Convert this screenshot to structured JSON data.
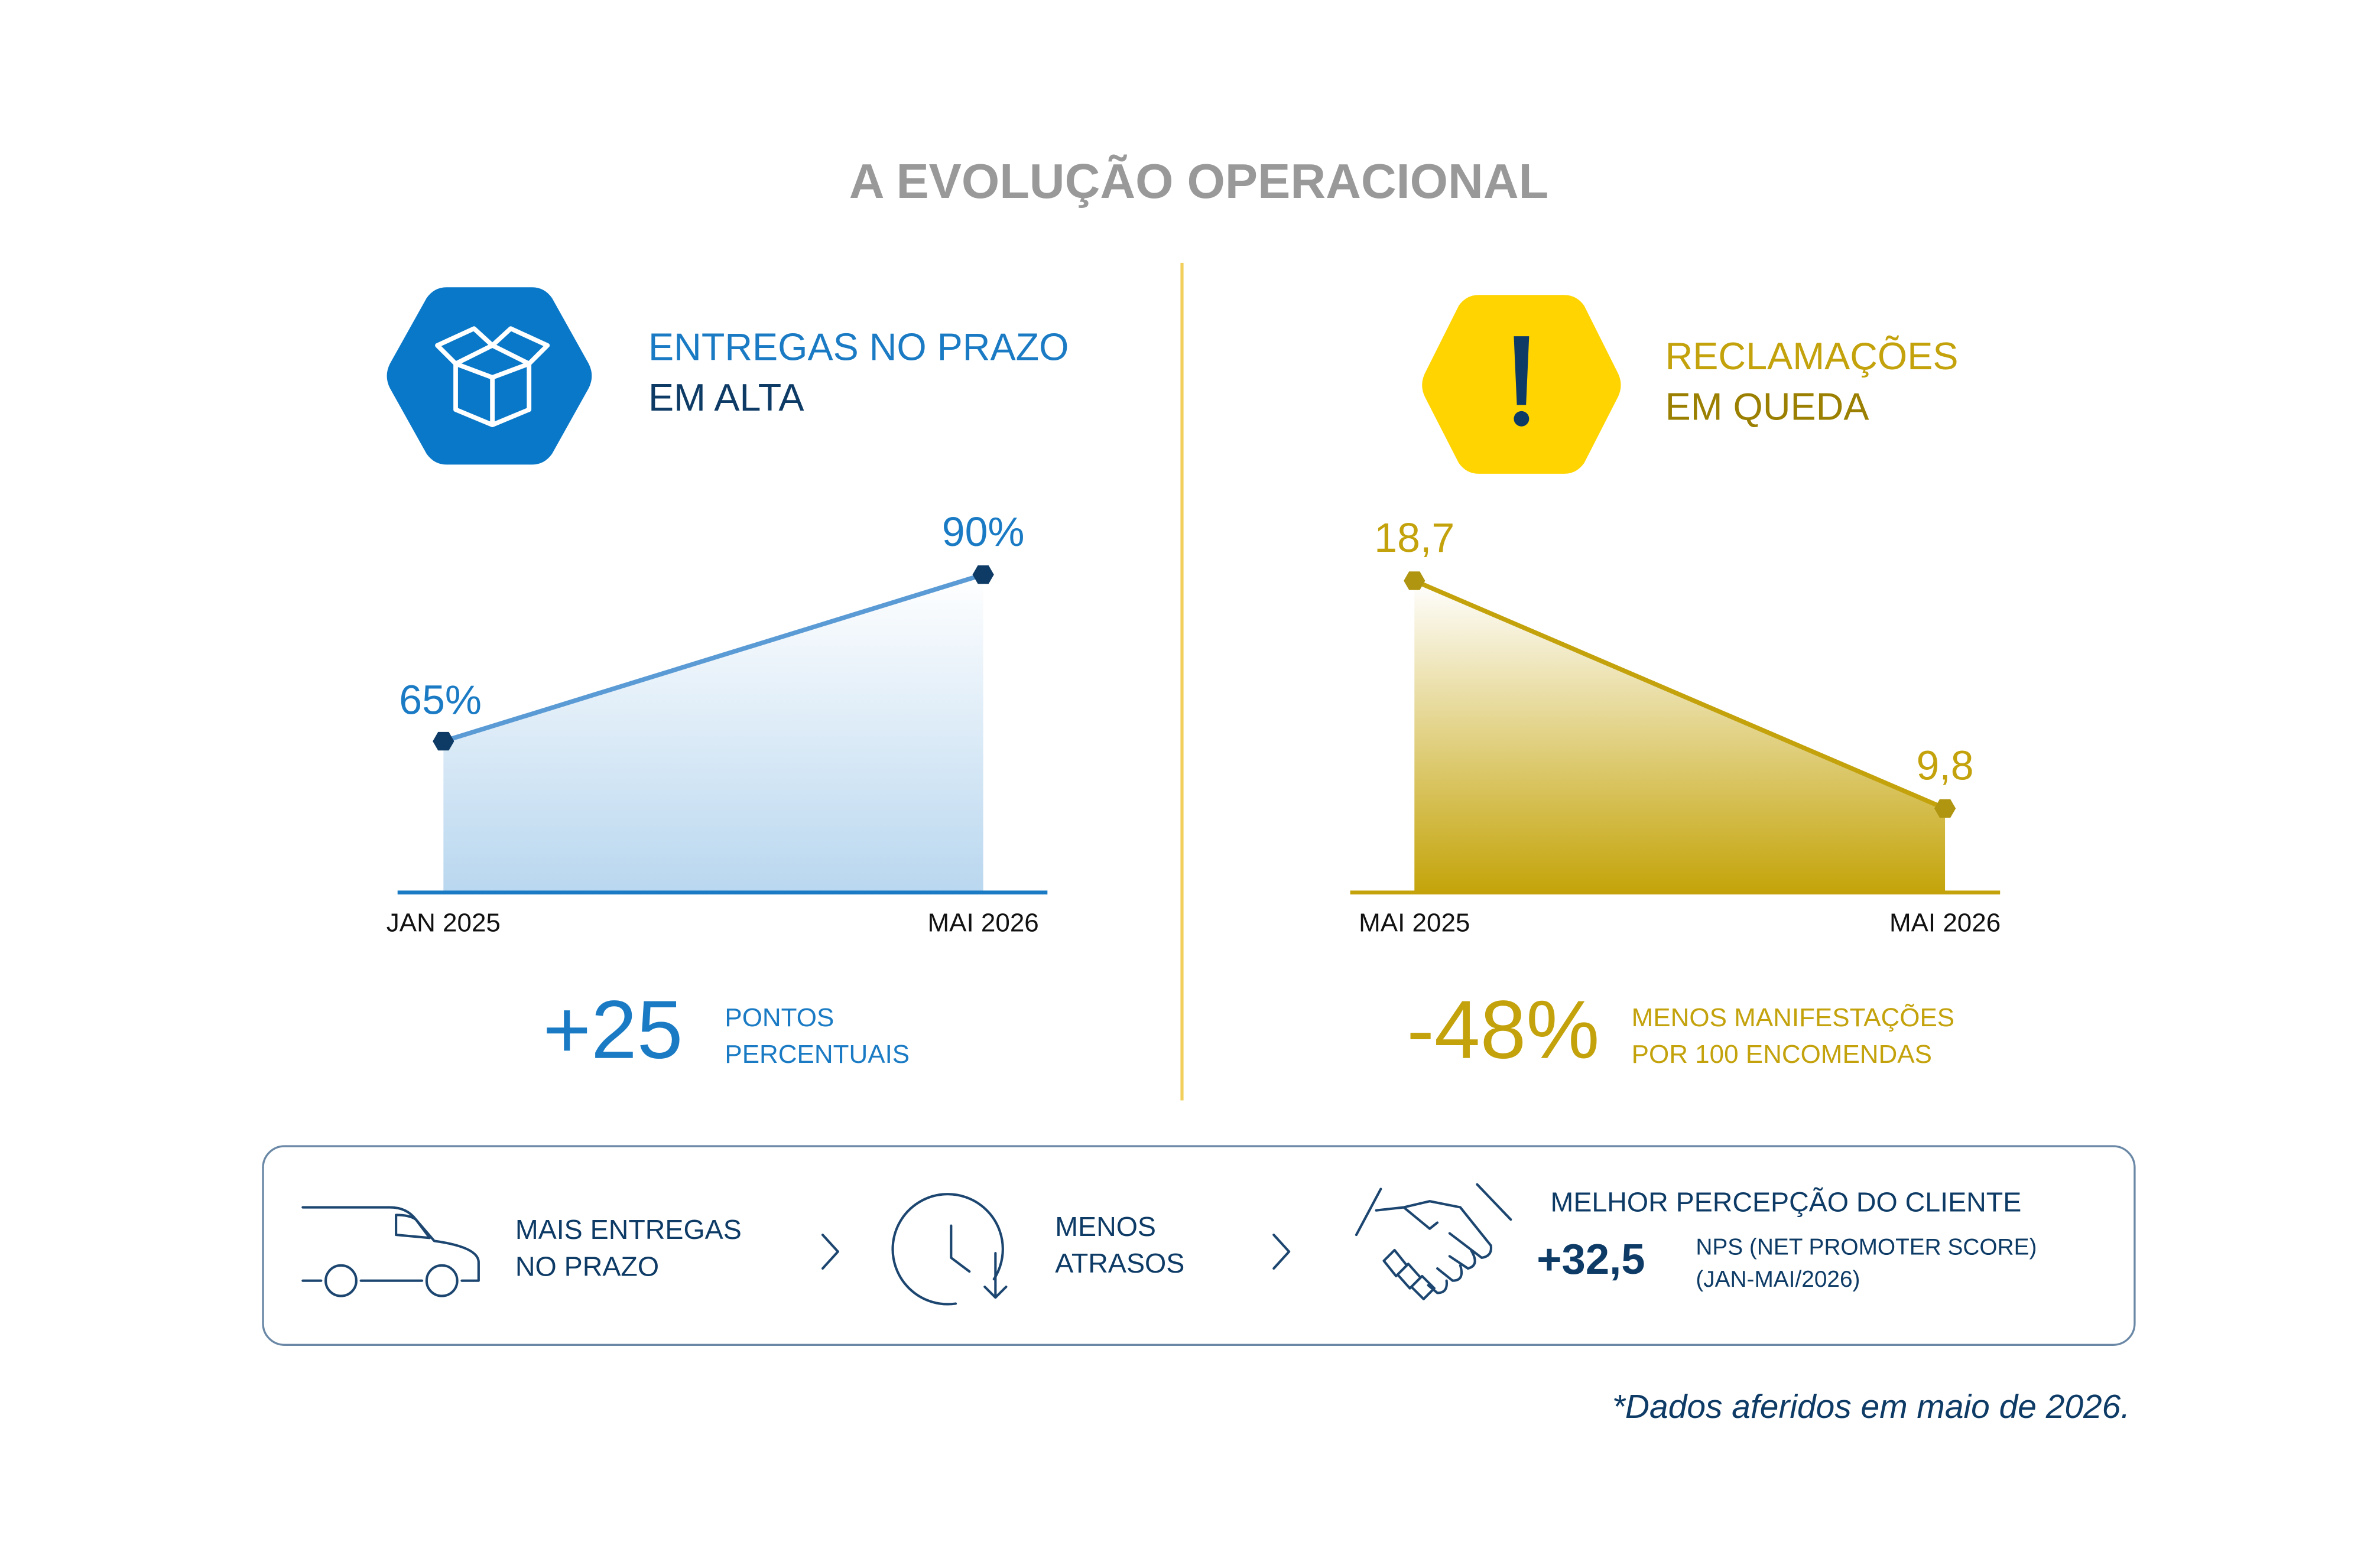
{
  "title": "A EVOLUÇÃO OPERACIONAL",
  "left": {
    "heading": [
      "ENTREGAS NO PRAZO",
      "EM ALTA"
    ],
    "stat": "+25",
    "stat_text": [
      "PONTOS",
      "PERCENTUAIS"
    ]
  },
  "right": {
    "heading": [
      "RECLAMAÇÕES",
      "EM QUEDA"
    ],
    "stat": "-48%",
    "stat_text": [
      "MENOS MANIFESTAÇÕES",
      "POR 100 ENCOMENDAS"
    ]
  },
  "summary": {
    "items": [
      {
        "text": [
          "MAIS ENTREGAS",
          "NO PRAZO"
        ]
      },
      {
        "text": [
          "MENOS",
          "ATRASOS"
        ]
      },
      {
        "text": [
          "MELHOR PERCEPÇÃO DO CLIENTE"
        ],
        "stat": "+32,5",
        "note": [
          "NPS (NET PROMOTER SCORE)",
          "(JAN-MAI/2026)"
        ]
      }
    ]
  },
  "footnote": "*Dados aferidos em maio de 2026.",
  "chart_data": [
    {
      "type": "line",
      "categories": [
        "JAN 2025",
        "MAI 2026"
      ],
      "values": [
        65,
        90
      ],
      "value_labels": [
        "65%",
        "90%"
      ],
      "color": "#5b9bd5"
    },
    {
      "type": "line",
      "categories": [
        "MAI 2025",
        "MAI 2026"
      ],
      "values": [
        18.7,
        9.8
      ],
      "value_labels": [
        "18,7",
        "9,8"
      ],
      "color": "#c3a20c"
    }
  ]
}
